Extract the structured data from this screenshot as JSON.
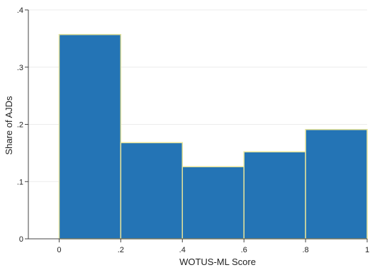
{
  "chart_data": {
    "type": "bar",
    "subtype": "histogram",
    "title": "",
    "xlabel": "WOTUS-ML Score",
    "ylabel": "Share of AJDs",
    "xlim": [
      -0.1,
      1.0
    ],
    "ylim": [
      0,
      0.4
    ],
    "xticks": [
      0,
      0.2,
      0.4,
      0.6,
      0.8,
      1.0
    ],
    "xtick_labels": [
      "0",
      ".2",
      ".4",
      ".6",
      ".8",
      "1"
    ],
    "yticks": [
      0,
      0.1,
      0.2,
      0.3,
      0.4
    ],
    "ytick_labels": [
      "0",
      ".1",
      ".2",
      ".3",
      ".4"
    ],
    "bins": [
      [
        0,
        0.2
      ],
      [
        0.2,
        0.4
      ],
      [
        0.4,
        0.6
      ],
      [
        0.6,
        0.8
      ],
      [
        0.8,
        1.0
      ]
    ],
    "values": [
      0.357,
      0.168,
      0.126,
      0.152,
      0.191
    ],
    "grid": true,
    "legend": "none",
    "colors": {
      "bar_fill": "#2474b5",
      "bar_edge": "#e6e39a",
      "grid": "#ececec",
      "axis": "#444444"
    }
  }
}
